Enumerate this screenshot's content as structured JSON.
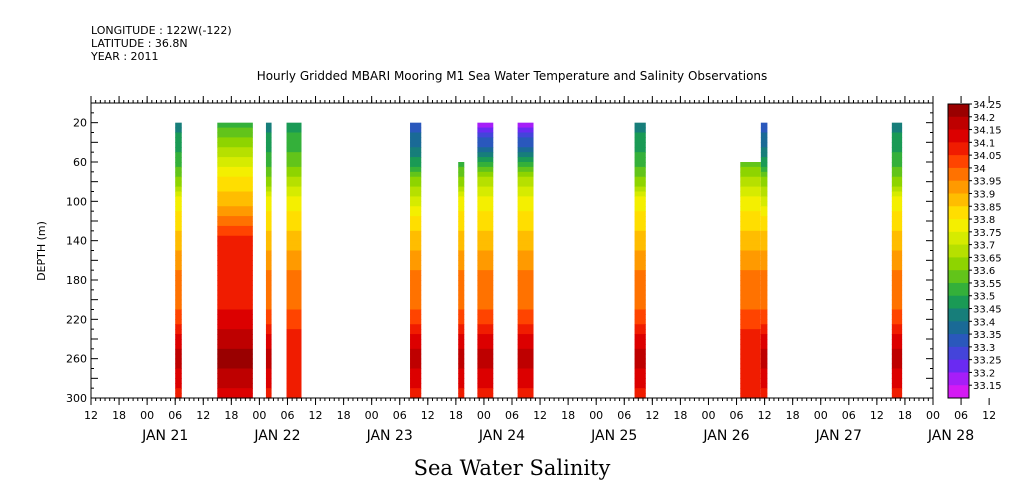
{
  "header": {
    "longitude": "LONGITUDE : 122W(-122)",
    "latitude": "LATITUDE : 36.8N",
    "year": "YEAR : 2011"
  },
  "chart_data": {
    "type": "heatmap",
    "title": "Hourly Gridded MBARI Mooring M1 Sea Water Temperature and Salinity Observations",
    "footer": "Sea Water Salinity",
    "ylabel": "DEPTH (m)",
    "y_ticks": [
      "20",
      "60",
      "100",
      "140",
      "180",
      "220",
      "260",
      "300"
    ],
    "y_range": [
      0,
      300
    ],
    "x_range_hours": [
      0,
      180
    ],
    "x_hour_ticks": [
      "12",
      "18",
      "00",
      "06",
      "12",
      "18",
      "00",
      "06",
      "12",
      "18",
      "00",
      "06",
      "12",
      "18",
      "00",
      "06",
      "12",
      "18",
      "00",
      "06",
      "12",
      "18",
      "00",
      "06",
      "12",
      "18",
      "00",
      "06",
      "12",
      "18",
      "00",
      "06",
      "12"
    ],
    "x_day_labels": [
      "JAN 21",
      "JAN 22",
      "JAN 23",
      "JAN 24",
      "JAN 25",
      "JAN 26",
      "JAN 27",
      "JAN 28"
    ],
    "colorbar_labels": [
      "34.25",
      "34.2",
      "34.15",
      "34.1",
      "34.05",
      "34",
      "33.95",
      "33.9",
      "33.85",
      "33.8",
      "33.75",
      "33.7",
      "33.65",
      "33.6",
      "33.55",
      "33.5",
      "33.45",
      "33.4",
      "33.35",
      "33.3",
      "33.25",
      "33.2",
      "33.15"
    ],
    "colors": [
      "#9a0000",
      "#be0000",
      "#dc0000",
      "#f01c00",
      "#ff4400",
      "#ff7200",
      "#ff9a00",
      "#ffbd00",
      "#ffde00",
      "#f4ef00",
      "#d6eb00",
      "#b6e000",
      "#8ed400",
      "#62c41a",
      "#34b03a",
      "#1a9a55",
      "#177e7a",
      "#1a6a96",
      "#2a58bc",
      "#4444da",
      "#6a2af2",
      "#a61ef8",
      "#d41af4"
    ],
    "segments": [
      {
        "start": 18.0,
        "end": 19.4,
        "top": 20,
        "profile": "std"
      },
      {
        "start": 27.0,
        "end": 34.6,
        "top": 20,
        "profile": "deep"
      },
      {
        "start": 37.4,
        "end": 38.6,
        "top": 20,
        "profile": "std"
      },
      {
        "start": 41.8,
        "end": 45.0,
        "top": 20,
        "profile": "mid"
      },
      {
        "start": 68.2,
        "end": 70.6,
        "top": 20,
        "profile": "blue"
      },
      {
        "start": 78.5,
        "end": 79.8,
        "top": 60,
        "profile": "std"
      },
      {
        "start": 82.6,
        "end": 86.0,
        "top": 20,
        "profile": "purple"
      },
      {
        "start": 91.2,
        "end": 94.6,
        "top": 20,
        "profile": "purple"
      },
      {
        "start": 116.2,
        "end": 118.6,
        "top": 20,
        "profile": "std"
      },
      {
        "start": 138.8,
        "end": 143.2,
        "top": 60,
        "profile": "mid"
      },
      {
        "start": 143.2,
        "end": 144.6,
        "top": 20,
        "profile": "blue"
      },
      {
        "start": 171.2,
        "end": 173.4,
        "top": 20,
        "profile": "std"
      }
    ]
  }
}
